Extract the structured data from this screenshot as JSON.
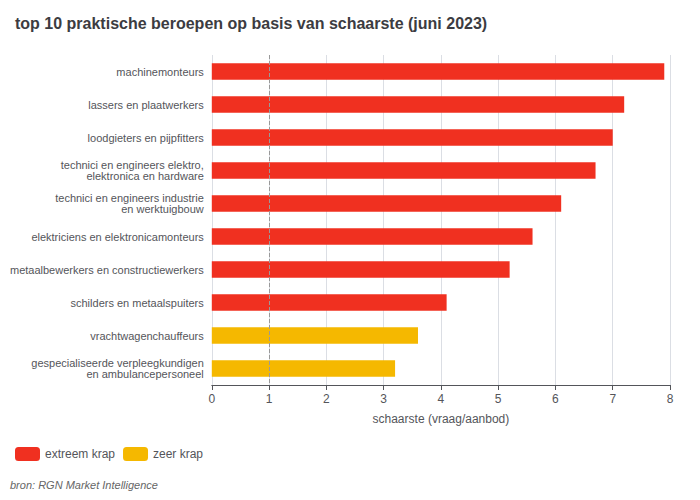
{
  "chart_data": {
    "type": "bar",
    "orientation": "horizontal",
    "title": "top 10 praktische beroepen op basis van schaarste (juni 2023)",
    "xlabel": "schaarste (vraag/aanbod)",
    "categories": [
      "machinemonteurs",
      "lassers en plaatwerkers",
      "loodgieters en pijpfitters",
      "technici en engineers elektro,\nelektronica en hardware",
      "technici en engineers industrie\nen werktuigbouw",
      "elektriciens en elektronicamonteurs",
      "metaalbewerkers en constructiewerkers",
      "schilders en metaalspuiters",
      "vrachtwagenchauffeurs",
      "gespecialiseerde verpleegkundigen\nen ambulancepersoneel"
    ],
    "series": [
      {
        "name": "extreem krap",
        "color": "#f03020",
        "values": [
          7.9,
          7.2,
          7.0,
          6.7,
          6.1,
          5.6,
          5.2,
          4.1,
          null,
          null
        ]
      },
      {
        "name": "zeer krap",
        "color": "#f5b800",
        "values": [
          null,
          null,
          null,
          null,
          null,
          null,
          null,
          null,
          3.6,
          3.2
        ]
      }
    ],
    "xlim": [
      0,
      8
    ],
    "xticks": [
      0,
      1,
      2,
      3,
      4,
      5,
      6,
      7,
      8
    ],
    "reference_lines": [
      {
        "x": 1.0,
        "line_style": "dashed"
      }
    ],
    "grid": true,
    "legend": "bottom-left",
    "annotations": [
      "bron: RGN Market Intelligence"
    ]
  }
}
